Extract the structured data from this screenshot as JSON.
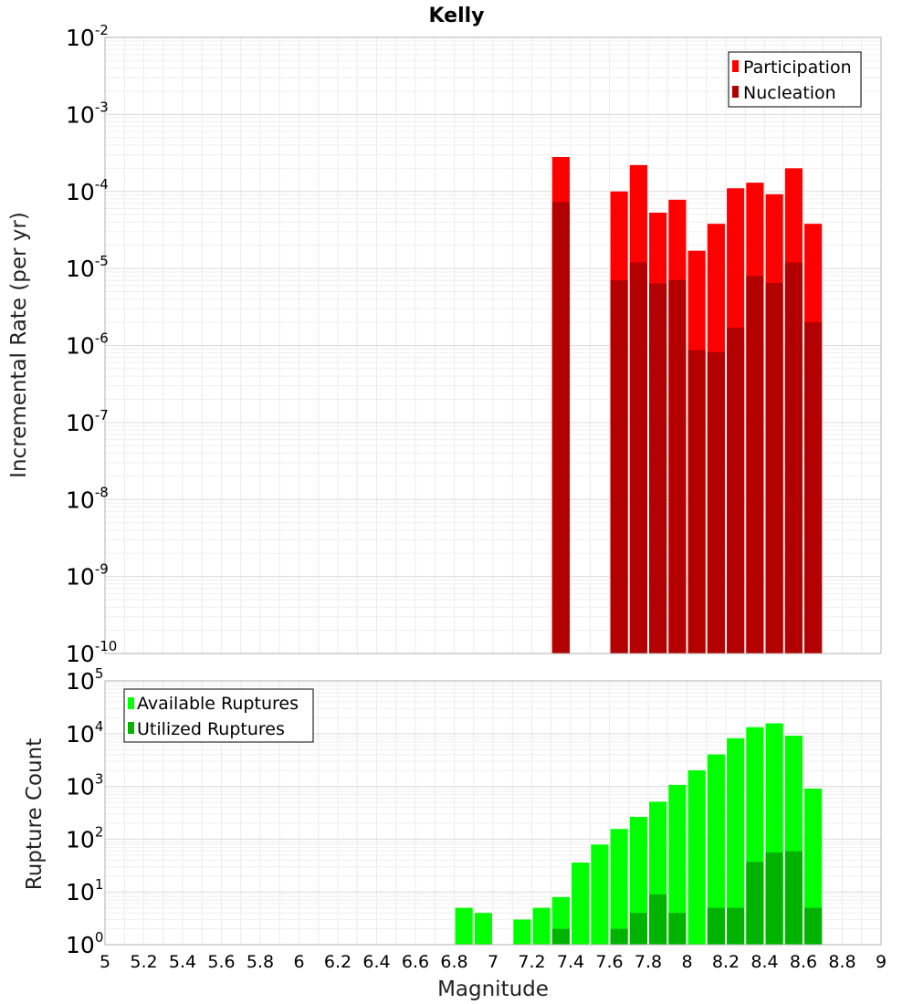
{
  "chart_data": [
    {
      "type": "bar",
      "title": "Kelly",
      "xlabel": "Magnitude",
      "ylabel": "Incremental Rate (per yr)",
      "y_scale": "log",
      "xlim": [
        5,
        9
      ],
      "ylim": [
        1e-10,
        0.01
      ],
      "y_tick_labels": [
        {
          "base": "10",
          "exp": "-10"
        },
        {
          "base": "10",
          "exp": "-9"
        },
        {
          "base": "10",
          "exp": "-8"
        },
        {
          "base": "10",
          "exp": "-7"
        },
        {
          "base": "10",
          "exp": "-6"
        },
        {
          "base": "10",
          "exp": "-5"
        },
        {
          "base": "10",
          "exp": "-4"
        },
        {
          "base": "10",
          "exp": "-3"
        },
        {
          "base": "10",
          "exp": "-2"
        }
      ],
      "grid": true,
      "legend_position": "top-right",
      "series": [
        {
          "name": "Participation",
          "color": "#ff0000",
          "points": [
            {
              "x": 7.35,
              "y": 0.00028
            },
            {
              "x": 7.65,
              "y": 0.0001
            },
            {
              "x": 7.75,
              "y": 0.00022
            },
            {
              "x": 7.85,
              "y": 5.3e-05
            },
            {
              "x": 7.95,
              "y": 7.8e-05
            },
            {
              "x": 8.05,
              "y": 1.7e-05
            },
            {
              "x": 8.15,
              "y": 3.8e-05
            },
            {
              "x": 8.25,
              "y": 0.00011
            },
            {
              "x": 8.35,
              "y": 0.00013
            },
            {
              "x": 8.45,
              "y": 9.2e-05
            },
            {
              "x": 8.55,
              "y": 0.0002
            },
            {
              "x": 8.65,
              "y": 3.8e-05
            }
          ]
        },
        {
          "name": "Nucleation",
          "color": "#b30000",
          "points": [
            {
              "x": 7.35,
              "y": 7.3e-05
            },
            {
              "x": 7.65,
              "y": 7e-06
            },
            {
              "x": 7.75,
              "y": 1.2e-05
            },
            {
              "x": 7.85,
              "y": 6.4e-06
            },
            {
              "x": 7.95,
              "y": 7.1e-06
            },
            {
              "x": 8.05,
              "y": 8.7e-07
            },
            {
              "x": 8.15,
              "y": 8.2e-07
            },
            {
              "x": 8.25,
              "y": 1.7e-06
            },
            {
              "x": 8.35,
              "y": 8e-06
            },
            {
              "x": 8.45,
              "y": 6.5e-06
            },
            {
              "x": 8.55,
              "y": 1.2e-05
            },
            {
              "x": 8.65,
              "y": 2e-06
            }
          ]
        }
      ]
    },
    {
      "type": "bar",
      "title": "",
      "xlabel": "Magnitude",
      "ylabel": "Rupture Count",
      "y_scale": "log",
      "xlim": [
        5,
        9
      ],
      "ylim": [
        1,
        100000.0
      ],
      "x_ticks": [
        "5",
        "5.2",
        "5.4",
        "5.6",
        "5.8",
        "6",
        "6.2",
        "6.4",
        "6.6",
        "6.8",
        "7",
        "7.2",
        "7.4",
        "7.6",
        "7.8",
        "8",
        "8.2",
        "8.4",
        "8.6",
        "8.8",
        "9"
      ],
      "y_tick_labels": [
        {
          "base": "10",
          "exp": "0"
        },
        {
          "base": "10",
          "exp": "1"
        },
        {
          "base": "10",
          "exp": "2"
        },
        {
          "base": "10",
          "exp": "3"
        },
        {
          "base": "10",
          "exp": "4"
        },
        {
          "base": "10",
          "exp": "5"
        }
      ],
      "grid": true,
      "legend_position": "top-left",
      "series": [
        {
          "name": "Available Ruptures",
          "color": "#00ff00",
          "points": [
            {
              "x": 6.85,
              "y": 5
            },
            {
              "x": 6.95,
              "y": 4
            },
            {
              "x": 7.15,
              "y": 3
            },
            {
              "x": 7.25,
              "y": 5
            },
            {
              "x": 7.35,
              "y": 8
            },
            {
              "x": 7.45,
              "y": 36
            },
            {
              "x": 7.55,
              "y": 79
            },
            {
              "x": 7.65,
              "y": 156
            },
            {
              "x": 7.75,
              "y": 265
            },
            {
              "x": 7.85,
              "y": 513
            },
            {
              "x": 7.95,
              "y": 1069
            },
            {
              "x": 8.05,
              "y": 2018
            },
            {
              "x": 8.15,
              "y": 4045
            },
            {
              "x": 8.25,
              "y": 8205
            },
            {
              "x": 8.35,
              "y": 13250
            },
            {
              "x": 8.45,
              "y": 15700
            },
            {
              "x": 8.55,
              "y": 9140
            },
            {
              "x": 8.65,
              "y": 910
            }
          ]
        },
        {
          "name": "Utilized Ruptures",
          "color": "#00b300",
          "points": [
            {
              "x": 7.35,
              "y": 2
            },
            {
              "x": 7.65,
              "y": 2
            },
            {
              "x": 7.75,
              "y": 4
            },
            {
              "x": 7.85,
              "y": 9
            },
            {
              "x": 7.95,
              "y": 4
            },
            {
              "x": 8.05,
              "y": 1
            },
            {
              "x": 8.15,
              "y": 5
            },
            {
              "x": 8.25,
              "y": 5
            },
            {
              "x": 8.35,
              "y": 37
            },
            {
              "x": 8.45,
              "y": 56
            },
            {
              "x": 8.55,
              "y": 59
            },
            {
              "x": 8.65,
              "y": 5
            }
          ]
        }
      ]
    }
  ]
}
